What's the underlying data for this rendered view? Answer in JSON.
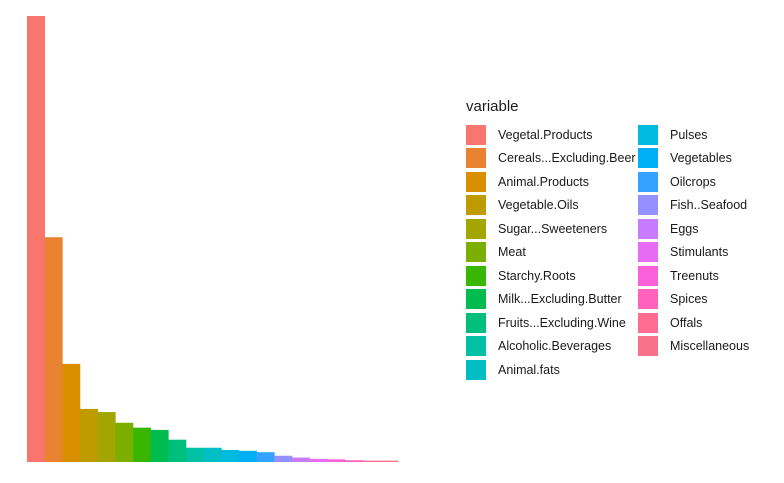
{
  "chart_data": {
    "type": "bar",
    "legend_title": "variable",
    "legend_position": "right",
    "grid": false,
    "ylim": [
      0,
      100
    ],
    "categories": [
      "Vegetal.Products",
      "Cereals...Excluding.Beer",
      "Animal.Products",
      "Vegetable.Oils",
      "Sugar...Sweeteners",
      "Meat",
      "Starchy.Roots",
      "Milk...Excluding.Butter",
      "Fruits...Excluding.Wine",
      "Alcoholic.Beverages",
      "Animal.fats",
      "Pulses",
      "Vegetables",
      "Oilcrops",
      "Fish..Seafood",
      "Eggs",
      "Stimulants",
      "Treenuts",
      "Spices",
      "Offals",
      "Miscellaneous"
    ],
    "values": [
      100,
      50.4,
      22,
      11.9,
      11.2,
      8.8,
      7.7,
      7.2,
      5,
      3.2,
      3.2,
      2.7,
      2.5,
      2.2,
      1.4,
      1,
      0.7,
      0.6,
      0.4,
      0.3,
      0.3
    ],
    "colors": [
      "#F8766D",
      "#EA8331",
      "#D89000",
      "#C09B00",
      "#A3A500",
      "#7CAE00",
      "#39B600",
      "#00BB4E",
      "#00BF7D",
      "#00C1A3",
      "#00BFC4",
      "#00BAE0",
      "#00B0F6",
      "#35A2FF",
      "#9590FF",
      "#C77CFF",
      "#E76BF3",
      "#FA62DB",
      "#FF62BC",
      "#FF6C91",
      "#F77189"
    ]
  }
}
